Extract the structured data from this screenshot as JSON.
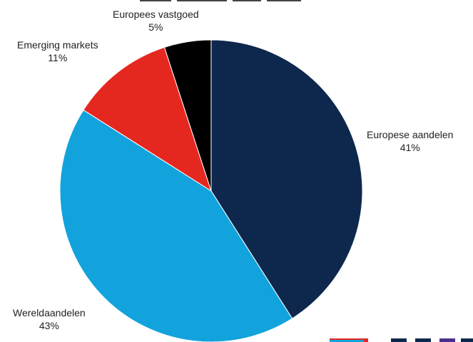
{
  "chart_data": {
    "type": "pie",
    "title": "",
    "start_angle_deg": 0,
    "direction": "clockwise",
    "slices": [
      {
        "label": "Europese aandelen",
        "value": 41,
        "value_label": "41%",
        "color": "#0e274d"
      },
      {
        "label": "Wereldaandelen",
        "value": 43,
        "value_label": "43%",
        "color": "#12a3dc"
      },
      {
        "label": "Emerging markets",
        "value": 11,
        "value_label": "11%",
        "color": "#e5281f"
      },
      {
        "label": "Europees vastgoed",
        "value": 5,
        "value_label": "5%",
        "color": "#000000"
      }
    ]
  },
  "colors": {
    "logo_red": "#e5281f",
    "logo_light_blue": "#12a3dc",
    "logo_navy": "#0e274d",
    "logo_purple": "#4b2f8f"
  }
}
